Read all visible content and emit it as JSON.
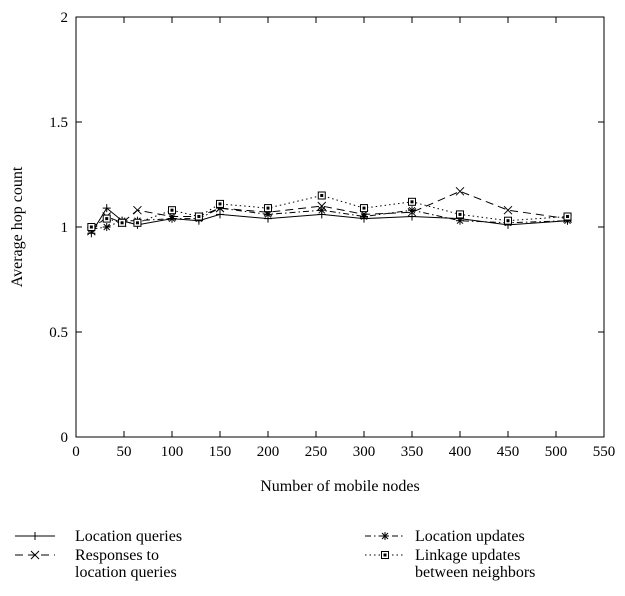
{
  "chart_data": {
    "type": "line",
    "title": "",
    "xlabel": "Number of mobile nodes",
    "ylabel": "Average hop count",
    "xlim": [
      0,
      550
    ],
    "ylim": [
      0,
      2
    ],
    "xticks": [
      0,
      50,
      100,
      150,
      200,
      250,
      300,
      350,
      400,
      450,
      500,
      550
    ],
    "yticks": [
      0,
      0.5,
      1,
      1.5,
      2
    ],
    "ytick_labels": [
      "0",
      "0.5",
      "1",
      "1.5",
      "2"
    ],
    "grid": false,
    "legend_position": "bottom",
    "series": [
      {
        "name": "Location queries",
        "line": "solid",
        "marker": "plus",
        "x": [
          16,
          32,
          48,
          64,
          100,
          128,
          150,
          200,
          256,
          300,
          350,
          400,
          450,
          512
        ],
        "y": [
          0.97,
          1.09,
          1.03,
          1.01,
          1.04,
          1.03,
          1.06,
          1.04,
          1.06,
          1.04,
          1.05,
          1.04,
          1.01,
          1.03
        ]
      },
      {
        "name": "Location updates",
        "line": "dashdot",
        "marker": "asterisk",
        "x": [
          16,
          32,
          48,
          64,
          100,
          128,
          150,
          200,
          256,
          300,
          350,
          400,
          450,
          512
        ],
        "y": [
          0.99,
          1.0,
          1.03,
          1.03,
          1.04,
          1.04,
          1.09,
          1.06,
          1.08,
          1.05,
          1.08,
          1.03,
          1.02,
          1.03
        ]
      },
      {
        "name": "Responses to location queries",
        "line": "dashed",
        "marker": "x",
        "x": [
          16,
          32,
          48,
          64,
          100,
          128,
          150,
          200,
          256,
          300,
          350,
          400,
          450,
          512
        ],
        "y": [
          0.98,
          1.05,
          1.02,
          1.08,
          1.05,
          1.05,
          1.09,
          1.07,
          1.1,
          1.06,
          1.07,
          1.17,
          1.08,
          1.04
        ]
      },
      {
        "name": "Linkage updates between neighbors",
        "line": "dotted",
        "marker": "square",
        "x": [
          16,
          32,
          48,
          64,
          100,
          128,
          150,
          200,
          256,
          300,
          350,
          400,
          450,
          512
        ],
        "y": [
          1.0,
          1.04,
          1.02,
          1.02,
          1.08,
          1.05,
          1.11,
          1.09,
          1.15,
          1.09,
          1.12,
          1.06,
          1.03,
          1.05
        ]
      }
    ],
    "legend": [
      {
        "series": 0,
        "lines": [
          "Location queries"
        ]
      },
      {
        "series": 2,
        "lines": [
          "Responses to",
          "location queries"
        ]
      },
      {
        "series": 1,
        "lines": [
          "Location updates"
        ]
      },
      {
        "series": 3,
        "lines": [
          "Linkage updates",
          "between neighbors"
        ]
      }
    ]
  }
}
